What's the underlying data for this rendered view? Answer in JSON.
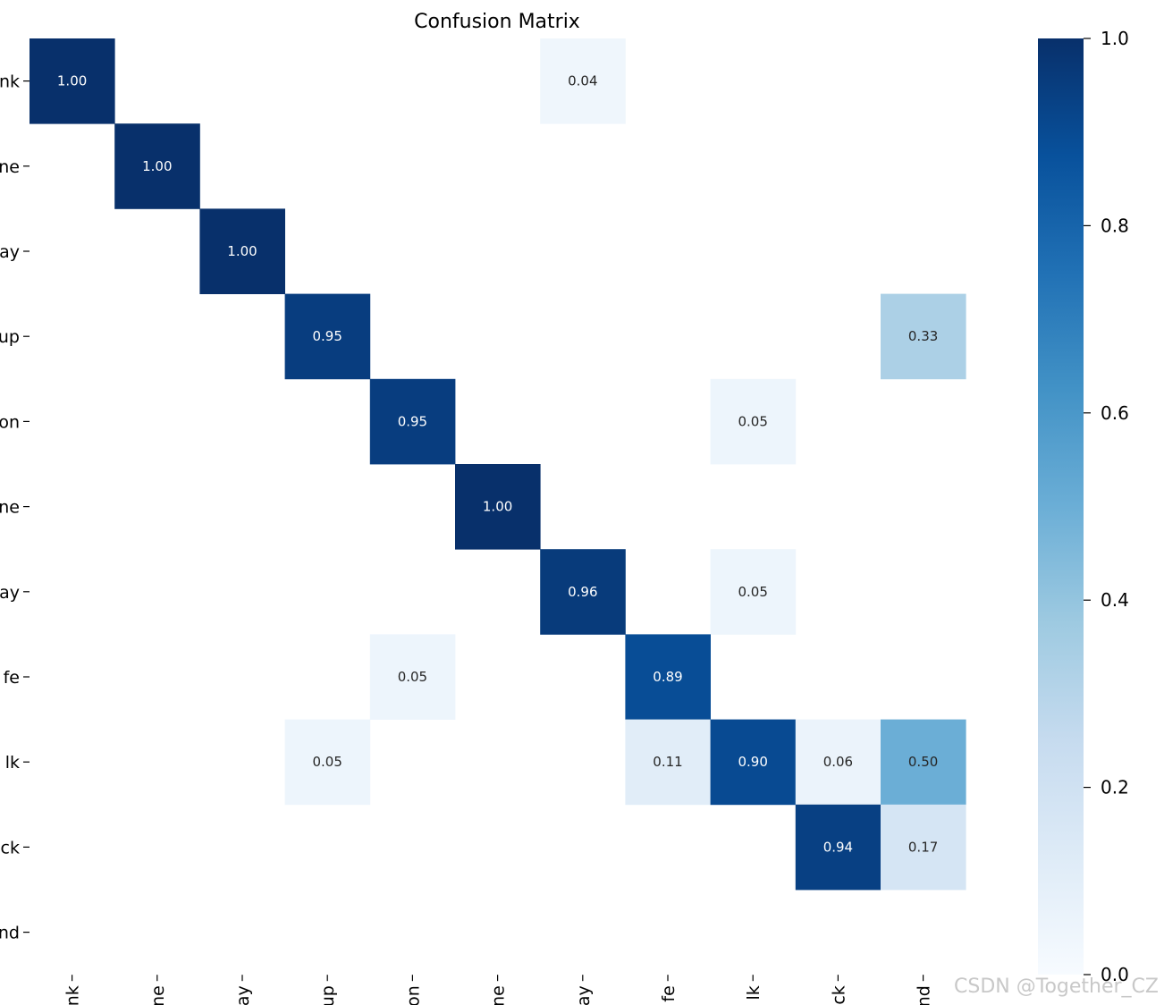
{
  "chart_data": {
    "type": "heatmap",
    "title": "Confusion Matrix",
    "row_labels": [
      "nk",
      "ne",
      "ay",
      "up",
      "on",
      "ne",
      "ay",
      "fe",
      "lk",
      "ck",
      "nd"
    ],
    "col_labels": [
      "nk",
      "ne",
      "ay",
      "up",
      "on",
      "ne",
      "ay",
      "fe",
      "lk",
      "ck",
      "nd"
    ],
    "values": [
      [
        1.0,
        null,
        null,
        null,
        null,
        null,
        0.04,
        null,
        null,
        null,
        null
      ],
      [
        null,
        1.0,
        null,
        null,
        null,
        null,
        null,
        null,
        null,
        null,
        null
      ],
      [
        null,
        null,
        1.0,
        null,
        null,
        null,
        null,
        null,
        null,
        null,
        null
      ],
      [
        null,
        null,
        null,
        0.95,
        null,
        null,
        null,
        null,
        null,
        null,
        0.33
      ],
      [
        null,
        null,
        null,
        null,
        0.95,
        null,
        null,
        null,
        0.05,
        null,
        null
      ],
      [
        null,
        null,
        null,
        null,
        null,
        1.0,
        null,
        null,
        null,
        null,
        null
      ],
      [
        null,
        null,
        null,
        null,
        null,
        null,
        0.96,
        null,
        0.05,
        null,
        null
      ],
      [
        null,
        null,
        null,
        null,
        0.05,
        null,
        null,
        0.89,
        null,
        null,
        null
      ],
      [
        null,
        null,
        null,
        0.05,
        null,
        null,
        null,
        0.11,
        0.9,
        0.06,
        0.5
      ],
      [
        null,
        null,
        null,
        null,
        null,
        null,
        null,
        null,
        null,
        0.94,
        0.17
      ],
      [
        null,
        null,
        null,
        null,
        null,
        null,
        null,
        null,
        null,
        null,
        null
      ]
    ],
    "value_format": "0.00",
    "colormap": "Blues",
    "vmin": 0.0,
    "vmax": 1.0,
    "colorbar_ticks": [
      "0.0",
      "0.2",
      "0.4",
      "0.6",
      "0.8",
      "1.0"
    ],
    "grid": false
  },
  "watermark": "CSDN @Together_CZ"
}
